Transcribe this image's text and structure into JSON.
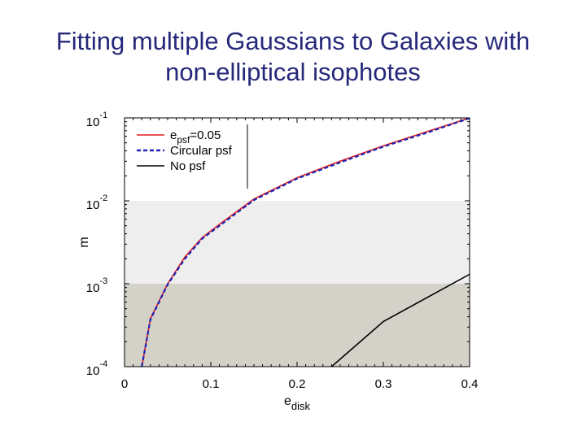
{
  "slide": {
    "title_line1": "Fitting multiple Gaussians to Galaxies with",
    "title_line2": "non-elliptical isophotes"
  },
  "chart_data": {
    "type": "line",
    "title": "",
    "xlabel": "e",
    "xlabel_sub": "disk",
    "ylabel": "m",
    "xlim": [
      0,
      0.4
    ],
    "ylim": [
      0.0001,
      0.1
    ],
    "yscale": "log",
    "x_ticks": [
      0,
      0.1,
      0.2,
      0.3,
      0.4
    ],
    "x_tick_labels": [
      "0",
      "0.1",
      "0.2",
      "0.3",
      "0.4"
    ],
    "y_ticks": [
      {
        "value": 0.1,
        "base": "10",
        "exp": "-1"
      },
      {
        "value": 0.01,
        "base": "10",
        "exp": "-2"
      },
      {
        "value": 0.001,
        "base": "10",
        "exp": "-3"
      },
      {
        "value": 0.0001,
        "base": "10",
        "exp": "-4"
      }
    ],
    "bands": [
      {
        "y_from": 0.001,
        "y_to": 0.01,
        "color": "#eeeeee"
      },
      {
        "y_from": 0.0001,
        "y_to": 0.001,
        "color": "#d4d2c8"
      }
    ],
    "legend": {
      "position": "top-left",
      "entries": [
        {
          "text": "e",
          "sub": "psf",
          "suffix": "=0.05",
          "color": "#e31a1c",
          "dash": "solid"
        },
        {
          "text": "Circular psf",
          "sub": "",
          "suffix": "",
          "color": "#1f22b4",
          "dash": "dashed"
        },
        {
          "text": "No psf",
          "sub": "",
          "suffix": "",
          "color": "#000000",
          "dash": "solid"
        }
      ]
    },
    "series": [
      {
        "name": "epsf=0.05",
        "color": "#e31a1c",
        "dash": "solid",
        "x": [
          0.02,
          0.03,
          0.05,
          0.07,
          0.09,
          0.11,
          0.15,
          0.2,
          0.25,
          0.3,
          0.35,
          0.4
        ],
        "y": [
          0.0001,
          0.00038,
          0.001,
          0.0021,
          0.0036,
          0.0052,
          0.0105,
          0.019,
          0.03,
          0.046,
          0.068,
          0.1
        ]
      },
      {
        "name": "Circular psf",
        "color": "#1f22b4",
        "dash": "dashed",
        "x": [
          0.02,
          0.03,
          0.05,
          0.07,
          0.09,
          0.11,
          0.15,
          0.2,
          0.25,
          0.3,
          0.35,
          0.4
        ],
        "y": [
          0.0001,
          0.00037,
          0.00098,
          0.002,
          0.0035,
          0.005,
          0.0102,
          0.0185,
          0.029,
          0.045,
          0.066,
          0.099
        ]
      },
      {
        "name": "No psf",
        "color": "#000000",
        "dash": "solid",
        "x": [
          0.24,
          0.3,
          0.4
        ],
        "y": [
          0.0001,
          0.00035,
          0.0013
        ]
      }
    ]
  }
}
